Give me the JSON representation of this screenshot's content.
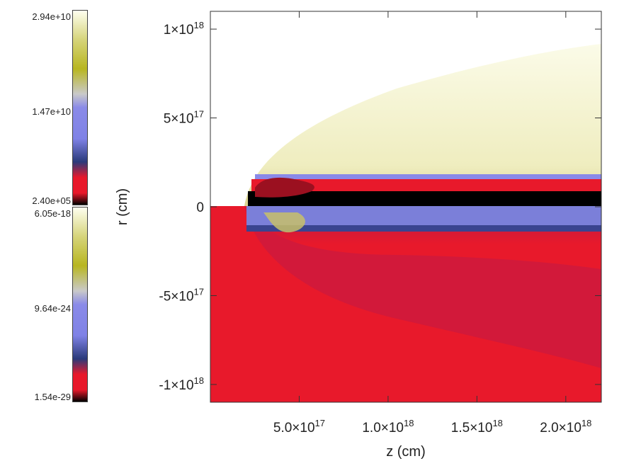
{
  "chart_data": {
    "type": "heatmap",
    "title": "",
    "xlabel": "z (cm)",
    "ylabel": "r (cm)",
    "xlim": [
      0,
      2.2e+18
    ],
    "ylim": [
      -1.1e+18,
      1.1e+18
    ],
    "x_ticks": [
      {
        "value": 5e+17,
        "label": "5.0×10",
        "exp": "17"
      },
      {
        "value": 1e+18,
        "label": "1.0×10",
        "exp": "18"
      },
      {
        "value": 1.5e+18,
        "label": "1.5×10",
        "exp": "18"
      },
      {
        "value": 2e+18,
        "label": "2.0×10",
        "exp": "18"
      }
    ],
    "y_ticks": [
      {
        "value": 1e+18,
        "label": "1×10",
        "exp": "18"
      },
      {
        "value": 5e+17,
        "label": "5×10",
        "exp": "17"
      },
      {
        "value": 0,
        "label": "0",
        "exp": ""
      },
      {
        "value": -5e+17,
        "label": "-5×10",
        "exp": "17"
      },
      {
        "value": -1e+18,
        "label": "-1×10",
        "exp": "18"
      }
    ],
    "colorbars": [
      {
        "name": "upper",
        "max": "2.94e+10",
        "mid": "1.47e+10",
        "min": "2.40e+05"
      },
      {
        "name": "lower",
        "max": "6.05e-18",
        "mid": "9.64e-24",
        "min": "1.54e-29"
      }
    ],
    "colormap": [
      "#000000",
      "#e8182a",
      "#2a3a7a",
      "#8a8ae8",
      "#c9c9c9",
      "#b8b620",
      "#fffff0"
    ],
    "colors": {
      "jet_red": "#e8192b",
      "cocoon_light": "#f5f3c9",
      "shear_blue": "#7b7fd9"
    }
  }
}
